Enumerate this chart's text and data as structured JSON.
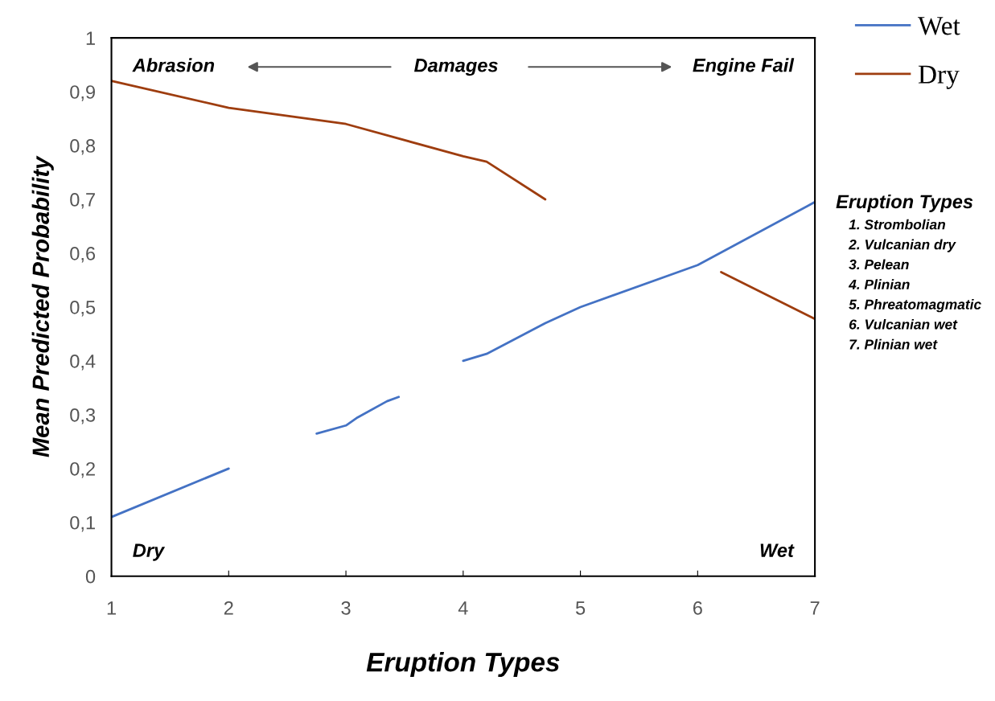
{
  "chart_data": {
    "type": "line",
    "xlabel": "Eruption Types",
    "ylabel": "Mean Predicted Probability",
    "xlim": [
      1,
      7
    ],
    "ylim": [
      0,
      1
    ],
    "xticks": [
      1,
      2,
      3,
      4,
      5,
      6,
      7
    ],
    "yticks": [
      0,
      {
        "value": 0.1,
        "label": "0,1"
      },
      {
        "value": 0.2,
        "label": "0,2"
      },
      {
        "value": 0.3,
        "label": "0,3"
      },
      {
        "value": 0.4,
        "label": "0,4"
      },
      {
        "value": 0.5,
        "label": "0,5"
      },
      {
        "value": 0.6,
        "label": "0,6"
      },
      {
        "value": 0.7,
        "label": "0,7"
      },
      {
        "value": 0.8,
        "label": "0,8"
      },
      {
        "value": 0.9,
        "label": "0,9"
      },
      1
    ],
    "series": [
      {
        "name": "Wet",
        "color": "#4472c4",
        "x": [
          1,
          2,
          2.4,
          2.75,
          3,
          3.1,
          3.35,
          3.45,
          3.7,
          4,
          4.2,
          4.7,
          5,
          6,
          7
        ],
        "values": [
          0.11,
          0.2,
          null,
          0.265,
          0.28,
          0.295,
          0.325,
          0.333,
          null,
          0.4,
          0.413,
          0.47,
          0.5,
          0.578,
          0.695
        ]
      },
      {
        "name": "Dry",
        "color": "#9e3d0f",
        "x": [
          1,
          2,
          3,
          4,
          4.2,
          4.7,
          5.5,
          6.2,
          7
        ],
        "values": [
          0.92,
          0.87,
          0.84,
          0.78,
          0.77,
          0.7,
          null,
          0.565,
          0.478
        ]
      }
    ],
    "annotations": [
      "Abrasion",
      "Damages",
      "Engine Fail",
      "Dry",
      "Wet",
      "Eruption Types",
      "1. Strombolian",
      "2. Vulcanian dry",
      "3. Pelean",
      "4. Plinian",
      "5. Phreatomagmatic",
      "6. Vulcanian wet",
      "7. Plinian wet"
    ],
    "legend": "top right",
    "grid": false,
    "line_style": "solid",
    "marker": "none"
  }
}
